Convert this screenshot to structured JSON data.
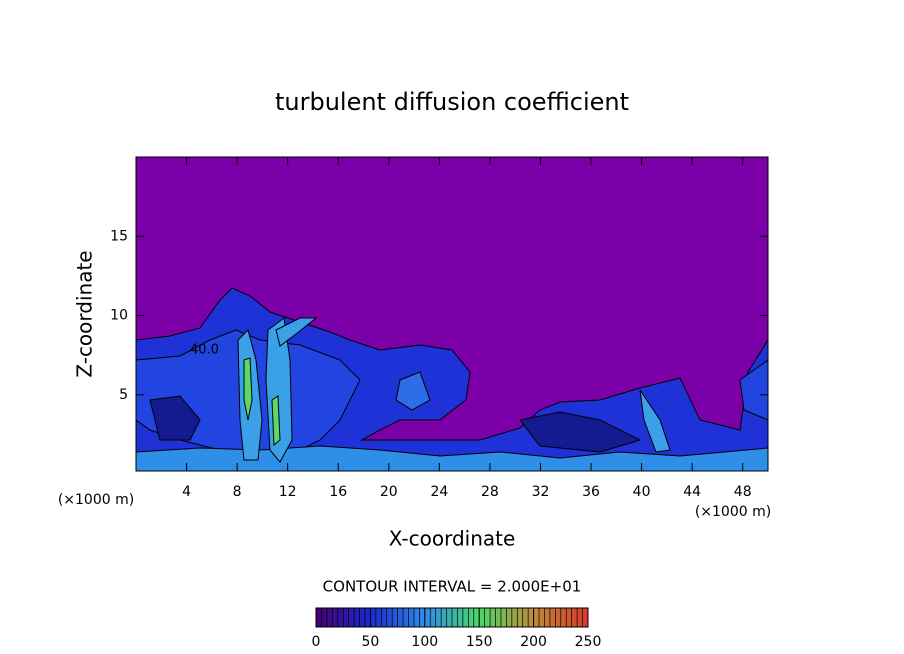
{
  "chart_data": {
    "type": "contour",
    "title": "turbulent diffusion coefficient",
    "x_label": "X-coordinate",
    "y_label": "Z-coordinate",
    "x_unit": "(×1000 m)",
    "y_unit": "(×1000 m)",
    "xlim": [
      0,
      50
    ],
    "xticks": [
      4,
      8,
      12,
      16,
      20,
      24,
      28,
      32,
      36,
      40,
      44,
      48
    ],
    "ylim": [
      0.2,
      20
    ],
    "yticks": [
      5,
      10,
      15
    ],
    "contour_interval": {
      "value": 20,
      "label": "CONTOUR INTERVAL = 2.000E+01"
    },
    "contour_labels": [
      {
        "value": 40,
        "label": "40.0"
      }
    ],
    "colorbar": {
      "lim": [
        0,
        250
      ],
      "ticks": [
        0,
        50,
        100,
        150,
        200,
        250
      ]
    }
  }
}
